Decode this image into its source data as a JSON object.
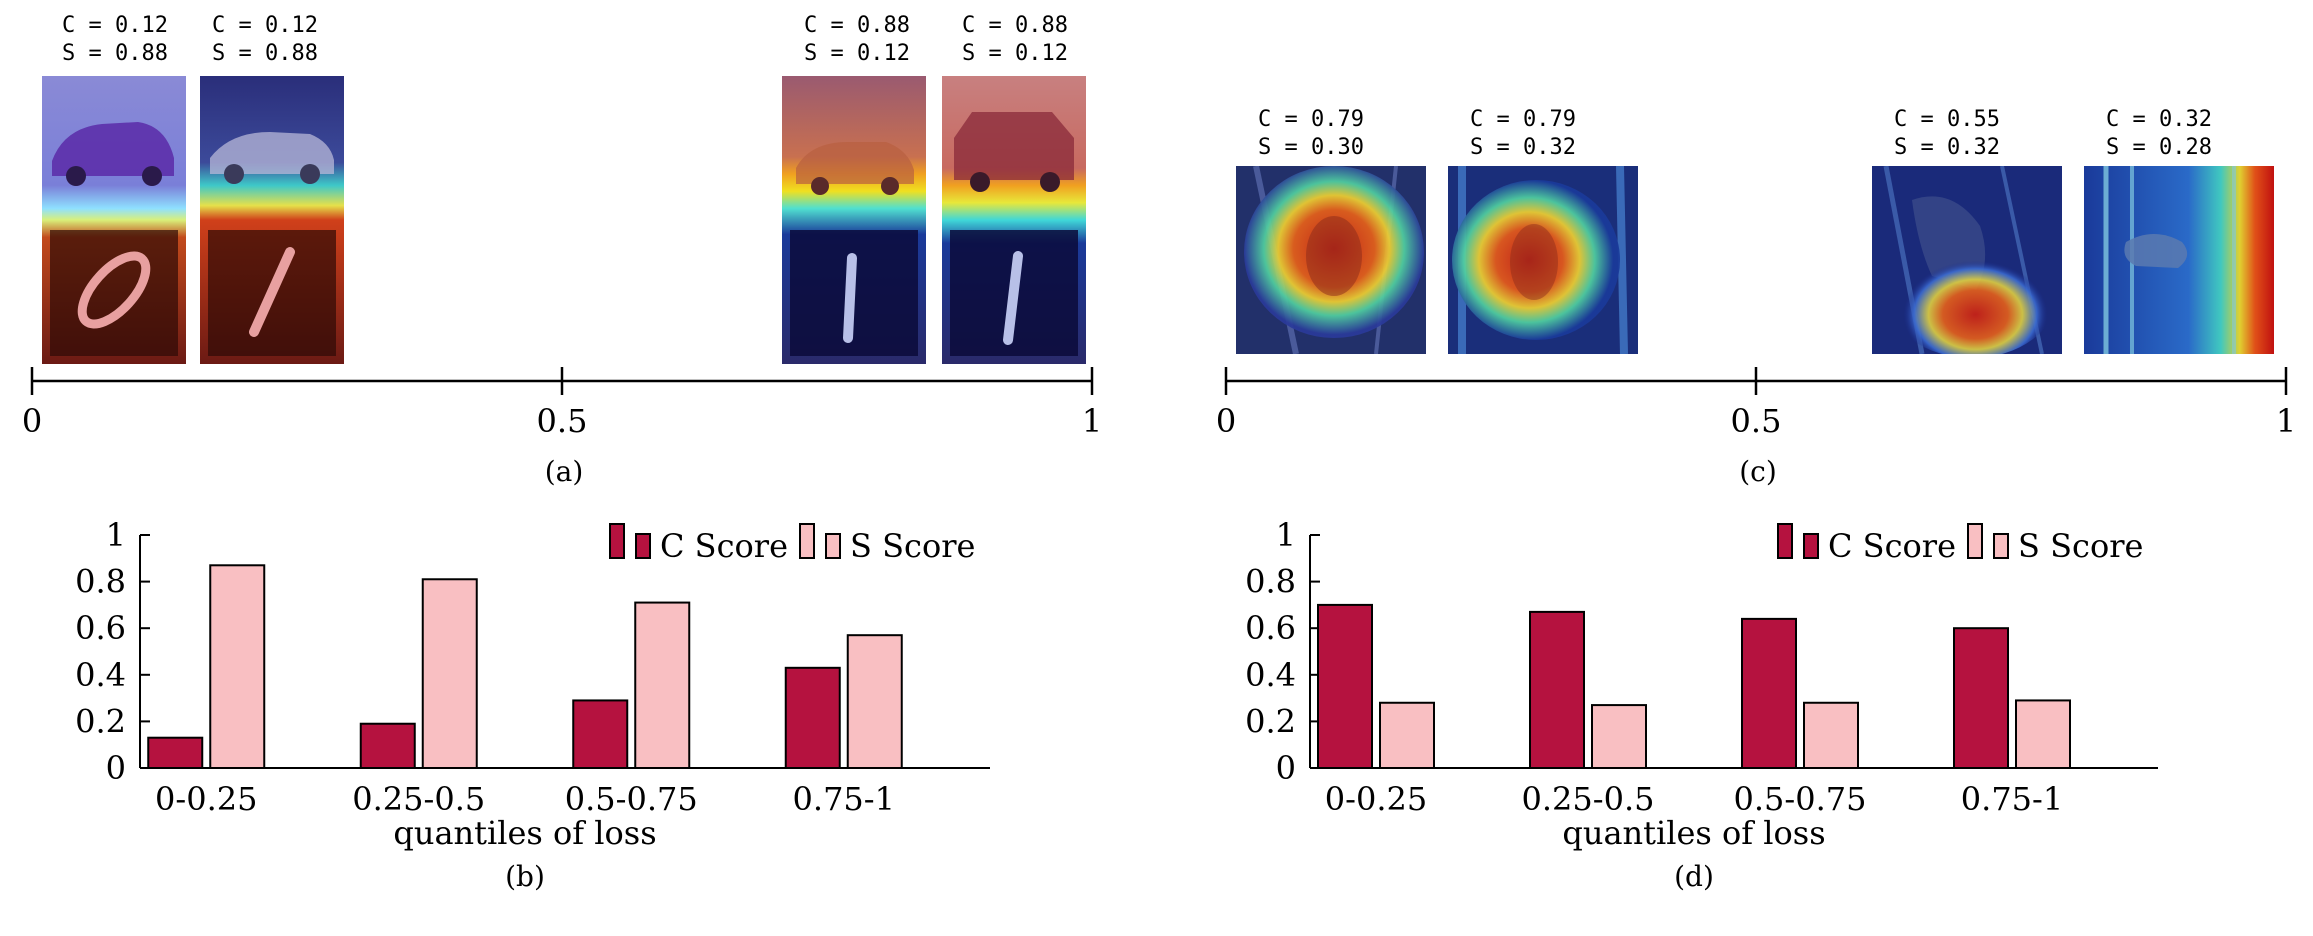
{
  "panel_a": {
    "caption": "(a)",
    "axis_ticks": [
      "0",
      "0.5",
      "1"
    ],
    "samples": [
      {
        "c_label": "C = 0.12",
        "s_label": "S = 0.88",
        "subject": "car-and-digit-zero",
        "c": 0.12,
        "s": 0.88
      },
      {
        "c_label": "C = 0.12",
        "s_label": "S = 0.88",
        "subject": "car-and-digit-one",
        "c": 0.12,
        "s": 0.88
      },
      {
        "c_label": "C = 0.88",
        "s_label": "S = 0.12",
        "subject": "car-and-digit-one",
        "c": 0.88,
        "s": 0.12
      },
      {
        "c_label": "C = 0.88",
        "s_label": "S = 0.12",
        "subject": "car-and-digit-one",
        "c": 0.88,
        "s": 0.12
      }
    ]
  },
  "panel_c": {
    "caption": "(c)",
    "axis_ticks": [
      "0",
      "0.5",
      "1"
    ],
    "samples": [
      {
        "c_label": "C = 0.79",
        "s_label": "S = 0.30",
        "subject": "bird-heatmap",
        "c": 0.79,
        "s": 0.3
      },
      {
        "c_label": "C = 0.79",
        "s_label": "S = 0.32",
        "subject": "bird-heatmap",
        "c": 0.79,
        "s": 0.32
      },
      {
        "c_label": "C = 0.55",
        "s_label": "S = 0.32",
        "subject": "bird-heatmap",
        "c": 0.55,
        "s": 0.32
      },
      {
        "c_label": "C = 0.32",
        "s_label": "S = 0.28",
        "subject": "bird-heatmap",
        "c": 0.32,
        "s": 0.28
      }
    ]
  },
  "colors": {
    "c_score": "#B5123F",
    "s_score": "#F9BFC2"
  },
  "chart_data": [
    {
      "type": "bar",
      "caption": "(b)",
      "categories": [
        "0-0.25",
        "0.25-0.5",
        "0.5-0.75",
        "0.75-1"
      ],
      "series": [
        {
          "name": "C Score",
          "values": [
            0.13,
            0.19,
            0.29,
            0.43
          ]
        },
        {
          "name": "S Score",
          "values": [
            0.87,
            0.81,
            0.71,
            0.57
          ]
        }
      ],
      "xlabel": "quantiles of loss",
      "ylabel": "",
      "ylim": [
        0,
        1
      ],
      "yticks": [
        "0",
        "0.2",
        "0.4",
        "0.6",
        "0.8",
        "1"
      ],
      "legend": "top-right",
      "grid": false
    },
    {
      "type": "bar",
      "caption": "(d)",
      "categories": [
        "0-0.25",
        "0.25-0.5",
        "0.5-0.75",
        "0.75-1"
      ],
      "series": [
        {
          "name": "C Score",
          "values": [
            0.7,
            0.67,
            0.64,
            0.6
          ]
        },
        {
          "name": "S Score",
          "values": [
            0.28,
            0.27,
            0.28,
            0.29
          ]
        }
      ],
      "xlabel": "quantiles of loss",
      "ylabel": "",
      "ylim": [
        0,
        1
      ],
      "yticks": [
        "0",
        "0.2",
        "0.4",
        "0.6",
        "0.8",
        "1"
      ],
      "legend": "top-right",
      "grid": false
    }
  ]
}
